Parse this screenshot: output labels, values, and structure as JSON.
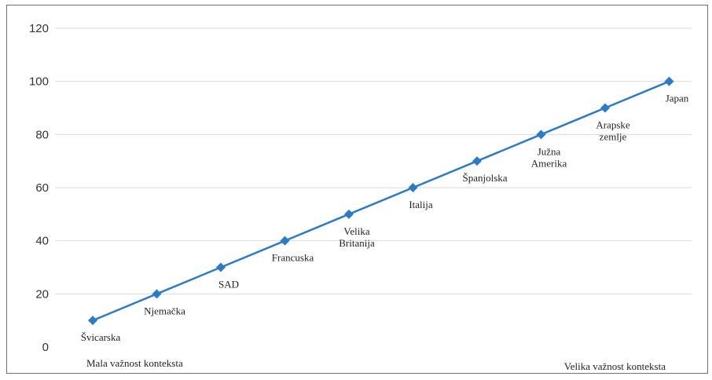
{
  "chart_data": {
    "type": "line",
    "title": "",
    "xlabel": "",
    "ylabel": "",
    "ylim": [
      0,
      120
    ],
    "yticks": [
      "0",
      "20",
      "40",
      "60",
      "80",
      "100",
      "120"
    ],
    "grid": true,
    "legend": "none",
    "line_color": "#2e7bc4",
    "grid_color": "#d9d9d9",
    "x": [
      1,
      2,
      3,
      4,
      5,
      6,
      7,
      8,
      9,
      10
    ],
    "series": [
      {
        "values": [
          10,
          20,
          30,
          40,
          50,
          60,
          70,
          80,
          90,
          100
        ],
        "labels": [
          [
            "Švicarska"
          ],
          [
            "Njemačka"
          ],
          [
            "SAD"
          ],
          [
            "Francuska"
          ],
          [
            "Velika",
            "Britanija"
          ],
          [
            "Italija"
          ],
          [
            "Španjolska"
          ],
          [
            "Južna",
            "Amerika"
          ],
          [
            "Arapske",
            "zemlje"
          ],
          [
            "Japan"
          ]
        ]
      }
    ],
    "x_axis_notes": {
      "left": "Mala važnost konteksta",
      "right": "Velika važnost konteksta"
    }
  }
}
